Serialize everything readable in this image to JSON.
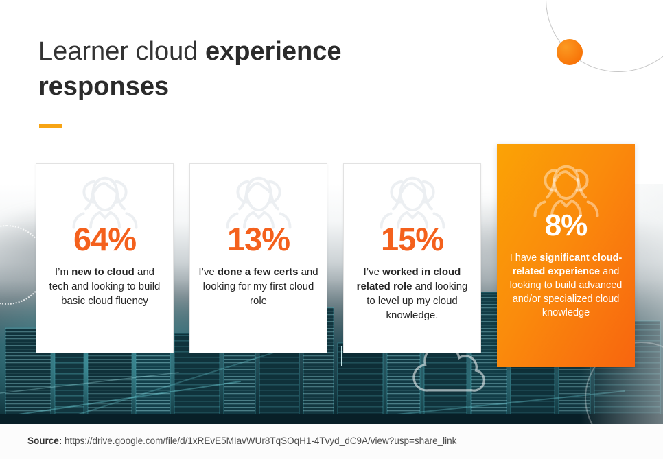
{
  "title": {
    "line1_light": "Learner cloud ",
    "line1_bold": "experience",
    "line2_bold": "responses"
  },
  "decor": {
    "accent_dash_color": "#f7a414",
    "orange_dot_color": "#f87507",
    "percent_color": "#f4611d",
    "highlight_gradient": [
      "#fba305",
      "#f8650f"
    ],
    "card_icon": "group-people-icon"
  },
  "cards": [
    {
      "percent": "64%",
      "value": 64,
      "highlight": false,
      "description": [
        {
          "text": "I’m ",
          "bold": false
        },
        {
          "text": "new to cloud",
          "bold": true
        },
        {
          "text": " and tech and looking to build basic cloud fluency",
          "bold": false
        }
      ]
    },
    {
      "percent": "13%",
      "value": 13,
      "highlight": false,
      "description": [
        {
          "text": "I’ve ",
          "bold": false
        },
        {
          "text": "done a few certs",
          "bold": true
        },
        {
          "text": " and looking for my first cloud role",
          "bold": false
        }
      ]
    },
    {
      "percent": "15%",
      "value": 15,
      "highlight": false,
      "description": [
        {
          "text": "I’ve ",
          "bold": false
        },
        {
          "text": "worked in cloud related role",
          "bold": true
        },
        {
          "text": " and looking to level up my cloud knowledge.",
          "bold": false
        }
      ]
    },
    {
      "percent": "8%",
      "value": 8,
      "highlight": true,
      "description": [
        {
          "text": "I have ",
          "bold": false
        },
        {
          "text": "significant cloud-related experience",
          "bold": true
        },
        {
          "text": " and looking to build advanced and/or specialized cloud knowledge",
          "bold": false
        }
      ]
    }
  ],
  "source": {
    "label": "Source:",
    "link_text": "https://drive.google.com/file/d/1xREvE5MIavWUr8TqSOqH1-4Tvyd_dC9A/view?usp=share_link"
  }
}
